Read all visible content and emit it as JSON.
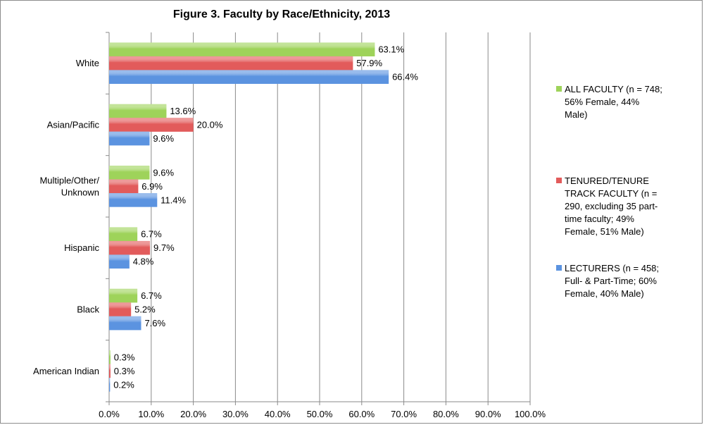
{
  "chart_data": {
    "type": "bar",
    "orientation": "horizontal",
    "title": "Figure 3. Faculty by Race/Ethnicity, 2013",
    "categories": [
      "White",
      "Asian/Pacific",
      "Multiple/Other/Unknown",
      "Hispanic",
      "Black",
      "American Indian"
    ],
    "category_labels": [
      [
        "White"
      ],
      [
        "Asian/Pacific"
      ],
      [
        "Multiple/Other/",
        "Unknown"
      ],
      [
        "Hispanic"
      ],
      [
        "Black"
      ],
      [
        "American Indian"
      ]
    ],
    "series": [
      {
        "name": "ALL FACULTY (n = 748; 56% Female, 44% Male)",
        "color": "#9ed35a",
        "values": [
          63.1,
          13.6,
          9.6,
          6.7,
          6.7,
          0.3
        ],
        "labels": [
          "63.1%",
          "13.6%",
          "9.6%",
          "6.7%",
          "6.7%",
          "0.3%"
        ]
      },
      {
        "name": "TENURED/TENURE TRACK FACULTY (n = 290, excluding 35 part-time faculty; 49% Female, 51% Male)",
        "color": "#e25b5b",
        "values": [
          57.9,
          20.0,
          6.9,
          9.7,
          5.2,
          0.3
        ],
        "labels": [
          "57.9%",
          "20.0%",
          "6.9%",
          "9.7%",
          "5.2%",
          "0.3%"
        ]
      },
      {
        "name": "LECTURERS (n = 458; Full- & Part-Time; 60% Female, 40% Male)",
        "color": "#5b93e0",
        "values": [
          66.4,
          9.6,
          11.4,
          4.8,
          7.6,
          0.2
        ],
        "labels": [
          "66.4%",
          "9.6%",
          "11.4%",
          "4.8%",
          "7.6%",
          "0.2%"
        ]
      }
    ],
    "xlim": [
      0,
      100
    ],
    "xticks": [
      "0.0%",
      "10.0%",
      "20.0%",
      "30.0%",
      "40.0%",
      "50.0%",
      "60.0%",
      "70.0%",
      "80.0%",
      "90.0%",
      "100.0%"
    ],
    "xlabel": "",
    "ylabel": "",
    "grid": true,
    "legend_position": "right",
    "legend_lines": [
      [
        "ALL FACULTY (n = 748;",
        "56% Female, 44%",
        "Male)"
      ],
      [
        "TENURED/TENURE",
        "TRACK FACULTY (n =",
        "290, excluding 35 part-",
        "time faculty; 49%",
        "Female, 51% Male)"
      ],
      [
        "LECTURERS (n = 458;",
        "Full- & Part-Time; 60%",
        "Female, 40% Male)"
      ]
    ]
  }
}
